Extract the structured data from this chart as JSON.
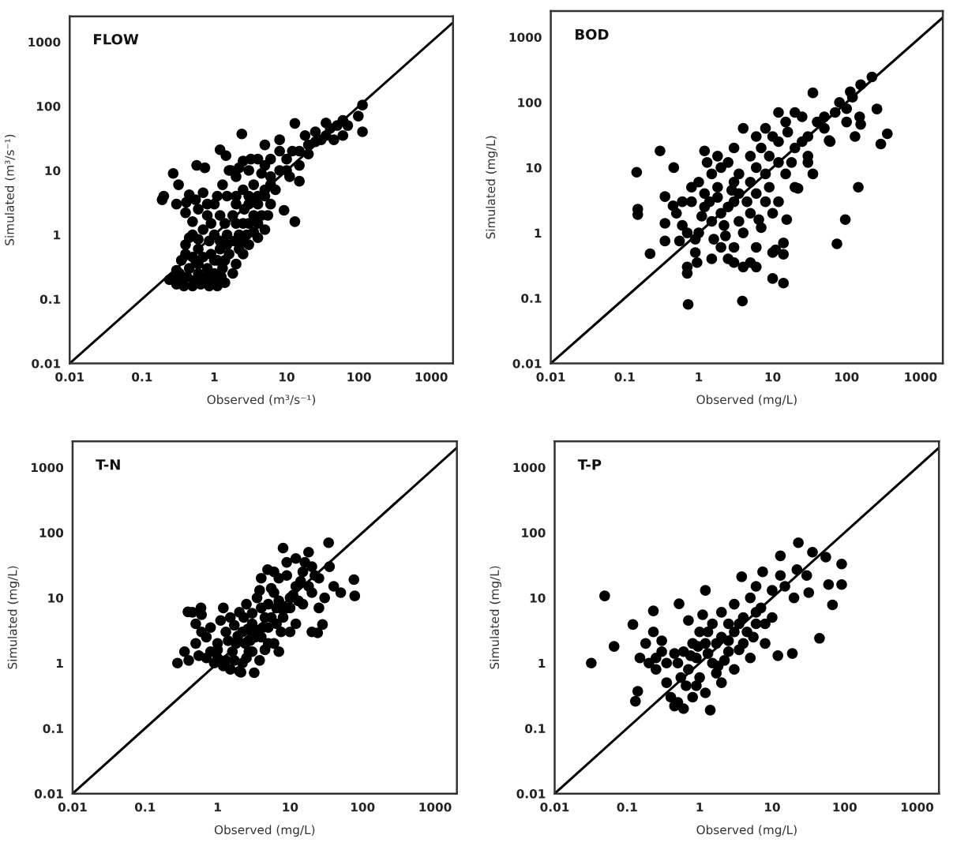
{
  "chart_data": [
    {
      "type": "scatter",
      "title": "FLOW",
      "xlabel": "Observed (m³/s⁻¹)",
      "ylabel": "Simulated (m³/s⁻¹)",
      "log": "xy",
      "xlim": [
        0.01,
        2000
      ],
      "ylim": [
        0.01,
        2500
      ],
      "xticks": [
        0.01,
        0.1,
        1,
        10,
        100,
        1000
      ],
      "yticks": [
        0.01,
        0.1,
        1,
        10,
        100,
        1000
      ],
      "line_style": "solid",
      "series": [
        {
          "color": "#000000",
          "marker": "circle",
          "x": [
            0.27,
            0.3,
            0.38,
            0.5,
            0.65,
            0.85,
            1.1,
            1.4,
            1.8,
            0.3,
            0.35,
            0.45,
            0.6,
            0.8,
            1.0,
            1.3,
            2.0,
            2.5,
            3,
            4,
            5,
            5.5,
            6,
            0.4,
            0.5,
            0.6,
            0.9,
            1.2,
            1.6,
            0.7,
            1,
            1.5,
            2.2,
            3,
            0.8,
            1.2,
            1.8,
            2.6,
            4,
            1,
            1.5,
            2.5,
            3.5,
            5,
            7,
            1.3,
            2,
            3,
            4.5,
            6,
            8,
            2.5,
            4,
            6,
            10,
            12,
            15,
            8,
            20,
            25,
            30,
            18,
            40,
            50,
            60,
            35,
            25,
            0.5,
            0.4,
            0.55,
            0.7,
            0.19,
            0.2,
            0.27,
            0.32,
            0.45,
            0.41,
            0.57,
            0.74,
            0.8,
            1.2,
            1.45,
            1.7,
            2.4,
            13,
            9.2,
            15,
            11,
            13,
            112,
            112,
            98,
            60,
            8,
            5,
            0.3,
            0.35,
            0.55,
            1.1,
            2.5,
            3.5,
            4.5,
            2,
            3,
            1.5,
            2.5,
            0.6,
            3.5,
            5,
            6,
            10,
            15,
            20,
            35,
            45,
            70,
            0.24,
            0.33,
            0.42,
            0.55,
            0.75,
            0.95,
            1.25,
            0.4,
            0.5,
            0.7,
            1.0,
            1.4,
            2.2,
            0.45,
            0.6,
            0.85,
            1.2,
            1.9,
            2.8,
            4,
            0.6,
            0.9,
            1.4,
            2,
            1.1,
            2,
            3,
            4,
            1.6,
            2.2,
            5,
            3.2
          ],
          "values": [
            0.22,
            0.17,
            0.16,
            0.16,
            0.17,
            0.16,
            0.16,
            0.18,
            0.25,
            0.28,
            0.4,
            0.3,
            0.25,
            0.3,
            0.25,
            0.3,
            0.35,
            0.5,
            0.7,
            0.9,
            1.2,
            2,
            3,
            0.7,
            1,
            0.6,
            0.5,
            0.6,
            0.5,
            1.2,
            1,
            1,
            1,
            1.5,
            2,
            2,
            2,
            2.5,
            3,
            3,
            4,
            5,
            6,
            5,
            5,
            6,
            8,
            10,
            9,
            8,
            10,
            14,
            15,
            15,
            15,
            20,
            20,
            20,
            25,
            28,
            30,
            35,
            45,
            50,
            60,
            55,
            40,
            1.6,
            2.2,
            3.5,
            4.5,
            3.5,
            4,
            9,
            6,
            4.2,
            3.2,
            12,
            11,
            3,
            21,
            17,
            10,
            37,
            1.6,
            2.4,
            6.8,
            8,
            54,
            104,
            40,
            70,
            35,
            30,
            25,
            3,
            0.2,
            0.4,
            0.4,
            1.5,
            2,
            2,
            3,
            4,
            0.7,
            0.8,
            0.35,
            1.1,
            4,
            6,
            10,
            12,
            18,
            35,
            30,
            50,
            0.2,
            0.25,
            0.22,
            0.2,
            0.22,
            0.2,
            0.22,
            0.5,
            0.45,
            0.45,
            0.4,
            0.4,
            0.6,
            0.9,
            0.85,
            0.8,
            0.8,
            0.8,
            1,
            1.5,
            2.5,
            1.5,
            1.5,
            1.5,
            4,
            4,
            3,
            4,
            10,
            11,
            12,
            15
          ]
        },
        {
          "type": "line",
          "color": "#000000",
          "x": [
            0.01,
            2000
          ],
          "values": [
            0.01,
            2000
          ]
        }
      ]
    },
    {
      "type": "scatter",
      "title": "BOD",
      "xlabel": "Observed (mg/L)",
      "ylabel": "Simulated (mg/L)",
      "log": "xy",
      "xlim": [
        0.01,
        2000
      ],
      "ylim": [
        0.01,
        2500
      ],
      "xticks": [
        0.01,
        0.1,
        1,
        10,
        100,
        1000
      ],
      "yticks": [
        0.01,
        0.1,
        1,
        10,
        100,
        1000
      ],
      "line_style": "solid",
      "series": [
        {
          "color": "#000000",
          "marker": "circle",
          "x": [
            0.145,
            0.15,
            0.15,
            0.3,
            0.22,
            0.46,
            0.35,
            0.35,
            0.35,
            0.7,
            0.7,
            0.72,
            3.9,
            0.95,
            14,
            10,
            144,
            96,
            74,
            257,
            355,
            290,
            220,
            155,
            35,
            112,
            155,
            58,
            22,
            30,
            15.5,
            14,
            0.5,
            0.6,
            0.8,
            1,
            1.2,
            1.5,
            2,
            2.5,
            3,
            3,
            2,
            1.5,
            1,
            1.2,
            0.9,
            2,
            2.5,
            3,
            4,
            5,
            6,
            4,
            5,
            6,
            8,
            5,
            7,
            10,
            15,
            20,
            25,
            12,
            15,
            20,
            8,
            10,
            10,
            30,
            40,
            50,
            70,
            80,
            100,
            120,
            60,
            20,
            35,
            4,
            3,
            1.8,
            1.3,
            1.2,
            0.9,
            0.7,
            0.6,
            0.45,
            0.55,
            1.5,
            2.3,
            1.8,
            3.5,
            6,
            8,
            9,
            12,
            6,
            7,
            12,
            14,
            11,
            30,
            50,
            100,
            150,
            130,
            1.4,
            1.8,
            2.5,
            3.5,
            4.5,
            2.8,
            3.5,
            5,
            6.5,
            9,
            12,
            16,
            18,
            25,
            6,
            2.2,
            1.1,
            0.8,
            1.6,
            3
          ],
          "values": [
            8.5,
            1.9,
            2.3,
            18,
            0.48,
            10,
            3.6,
            1.4,
            0.75,
            0.24,
            0.3,
            0.08,
            0.09,
            0.35,
            0.17,
            0.2,
            5,
            1.6,
            0.68,
            79,
            33,
            23,
            245,
            186,
            140,
            145,
            46,
            26,
            4.8,
            12,
            1.6,
            0.47,
            2,
            3,
            5,
            6,
            4,
            8,
            10,
            12,
            6,
            3,
            2,
            1.5,
            1,
            2.5,
            0.8,
            0.6,
            0.4,
            0.35,
            0.3,
            0.35,
            0.3,
            1,
            2,
            4,
            8,
            15,
            20,
            30,
            50,
            70,
            60,
            12,
            8,
            20,
            3,
            2,
            0.5,
            30,
            50,
            60,
            70,
            100,
            80,
            120,
            25,
            5,
            8,
            40,
            20,
            15,
            12,
            18,
            0.5,
            1.0,
            1.3,
            2.6,
            0.75,
            0.4,
            0.9,
            5,
            4,
            10,
            40,
            15,
            70,
            0.6,
            1.2,
            3,
            0.7,
            0.55,
            15,
            40,
            50,
            60,
            30,
            3,
            3.5,
            2.5,
            1.5,
            3,
            4.5,
            8,
            6,
            1.6,
            5,
            25,
            35,
            12,
            25,
            30,
            1.3,
            1.8,
            3,
            0.8,
            0.6
          ]
        },
        {
          "type": "line",
          "color": "#000000",
          "x": [
            0.01,
            2000
          ],
          "values": [
            0.01,
            2000
          ]
        }
      ]
    },
    {
      "type": "scatter",
      "title": "T-N",
      "xlabel": "Observed (mg/L)",
      "ylabel": "Simulated (mg/L)",
      "log": "xy",
      "xlim": [
        0.01,
        2000
      ],
      "ylim": [
        0.01,
        2500
      ],
      "xticks": [
        0.01,
        0.1,
        1,
        10,
        100,
        1000
      ],
      "yticks": [
        0.01,
        0.1,
        1,
        10,
        100,
        1000
      ],
      "line_style": "solid",
      "series": [
        {
          "color": "#000000",
          "marker": "circle",
          "x": [
            0.28,
            0.35,
            0.4,
            0.5,
            0.39,
            0.59,
            0.5,
            0.6,
            0.7,
            0.8,
            0.9,
            1,
            1.2,
            1.5,
            2,
            3.2,
            2.1,
            1,
            1.3,
            1.5,
            1.2,
            1.8,
            2.2,
            2.5,
            3,
            3,
            2,
            2.5,
            3.5,
            4,
            5,
            6,
            4.5,
            5,
            6,
            4.9,
            4,
            7,
            8,
            8,
            10,
            12,
            10,
            12,
            15,
            20,
            15,
            20,
            25,
            34,
            24,
            28,
            20,
            30,
            40,
            76,
            78,
            50,
            35,
            9,
            7,
            1.1,
            0.8,
            1.6,
            2.8,
            3.8,
            5,
            6.5,
            9,
            0.45,
            0.6,
            18,
            12,
            25,
            1,
            1.3,
            1.7,
            2.2,
            2.7,
            1.4,
            1.9,
            2.4,
            3.3,
            2.6,
            3.5,
            4.2,
            4.5,
            1.7,
            2.3,
            3,
            4,
            5.5,
            6.5,
            7.5,
            8,
            10,
            11,
            13,
            14,
            18,
            22,
            6,
            9,
            16,
            7,
            5.5,
            3.8,
            0.7,
            0.55
          ],
          "values": [
            1,
            1.5,
            1.1,
            2,
            6.1,
            7,
            4,
            3,
            2.5,
            1.5,
            1,
            1.2,
            0.9,
            0.8,
            0.75,
            0.71,
            0.72,
            2,
            3,
            5,
            7,
            2,
            3,
            1.2,
            1.5,
            4,
            6,
            8,
            10,
            2.5,
            2,
            2,
            5,
            8,
            12,
            27,
            20,
            20,
            58,
            5,
            3,
            4,
            10,
            15,
            25,
            30,
            8,
            12,
            20,
            70,
            2.9,
            3.9,
            3,
            10,
            15,
            19,
            10.7,
            12,
            30,
            35,
            1.5,
            4.5,
            3.5,
            1.5,
            2.2,
            1.1,
            3.5,
            7,
            7,
            6,
            5.5,
            50,
            40,
            7,
            1.6,
            1.1,
            1.1,
            1,
            1.5,
            2.2,
            2.6,
            2,
            2.5,
            3.3,
            3.2,
            3.5,
            1.6,
            3.8,
            5,
            5.8,
            7,
            5,
            4,
            3,
            6.5,
            7,
            11,
            9,
            18,
            15,
            22,
            25,
            22,
            35,
            9,
            14,
            13,
            1.2,
            1.3
          ]
        },
        {
          "type": "line",
          "color": "#000000",
          "x": [
            0.01,
            2000
          ],
          "values": [
            0.01,
            2000
          ]
        }
      ]
    },
    {
      "type": "scatter",
      "title": "T-P",
      "xlabel": "Observed (mg/L)",
      "ylabel": "Simulated (mg/L)",
      "log": "xy",
      "xlim": [
        0.01,
        2000
      ],
      "ylim": [
        0.01,
        2500
      ],
      "xticks": [
        0.01,
        0.1,
        1,
        10,
        100,
        1000
      ],
      "yticks": [
        0.01,
        0.1,
        1,
        10,
        100,
        1000
      ],
      "line_style": "solid",
      "series": [
        {
          "color": "#000000",
          "marker": "circle",
          "x": [
            0.032,
            0.049,
            0.066,
            0.12,
            0.13,
            0.14,
            0.23,
            0.23,
            0.52,
            1.2,
            1.4,
            3.8,
            7.4,
            13,
            23,
            36,
            55,
            91,
            91,
            60,
            68,
            45,
            19,
            32,
            22,
            13,
            0.15,
            0.2,
            0.25,
            0.3,
            0.35,
            0.4,
            0.5,
            0.6,
            0.45,
            0.5,
            0.6,
            0.7,
            0.8,
            0.9,
            1,
            1,
            1.2,
            1.5,
            1.5,
            2,
            2,
            2.5,
            3,
            3,
            4,
            4,
            5,
            5,
            6,
            7,
            8,
            10,
            10,
            12,
            2,
            1.2,
            0.8,
            3,
            1.7,
            0.3,
            0.18,
            0.7,
            1.1,
            2.5,
            6,
            15,
            20,
            30,
            0.25,
            0.35,
            0.45,
            0.55,
            0.75,
            0.95,
            1.3,
            1.3,
            1.7,
            2.2,
            2.5,
            3.5,
            3.5,
            4.5,
            5.5,
            6,
            8,
            1.8,
            0.65,
            0.9
          ],
          "values": [
            1,
            10.7,
            1.8,
            3.9,
            0.26,
            0.37,
            6.3,
            3.0,
            8.1,
            13,
            0.19,
            21,
            25,
            44,
            70,
            50,
            42,
            33,
            16,
            16,
            7.8,
            2.4,
            1.4,
            12,
            27,
            22,
            1.2,
            1,
            0.8,
            1.5,
            0.5,
            0.3,
            0.25,
            0.2,
            0.22,
            1,
            1.5,
            0.8,
            2,
            1.2,
            0.6,
            3,
            2,
            1,
            4,
            2.5,
            6,
            1.5,
            3,
            8,
            5,
            2,
            1.2,
            10,
            4,
            7,
            2,
            5,
            13,
            1.3,
            0.5,
            0.35,
            0.3,
            0.8,
            0.7,
            2.2,
            2,
            4.5,
            5.5,
            4,
            15,
            15,
            10,
            22,
            1.2,
            1,
            1.4,
            0.6,
            1.3,
            1.8,
            1.4,
            3,
            2,
            1.1,
            2.2,
            1.6,
            4,
            3,
            2.5,
            6,
            4,
            0.9,
            0.45,
            0.45
          ]
        },
        {
          "type": "line",
          "color": "#000000",
          "x": [
            0.01,
            2000
          ],
          "values": [
            0.01,
            2000
          ]
        }
      ]
    }
  ]
}
